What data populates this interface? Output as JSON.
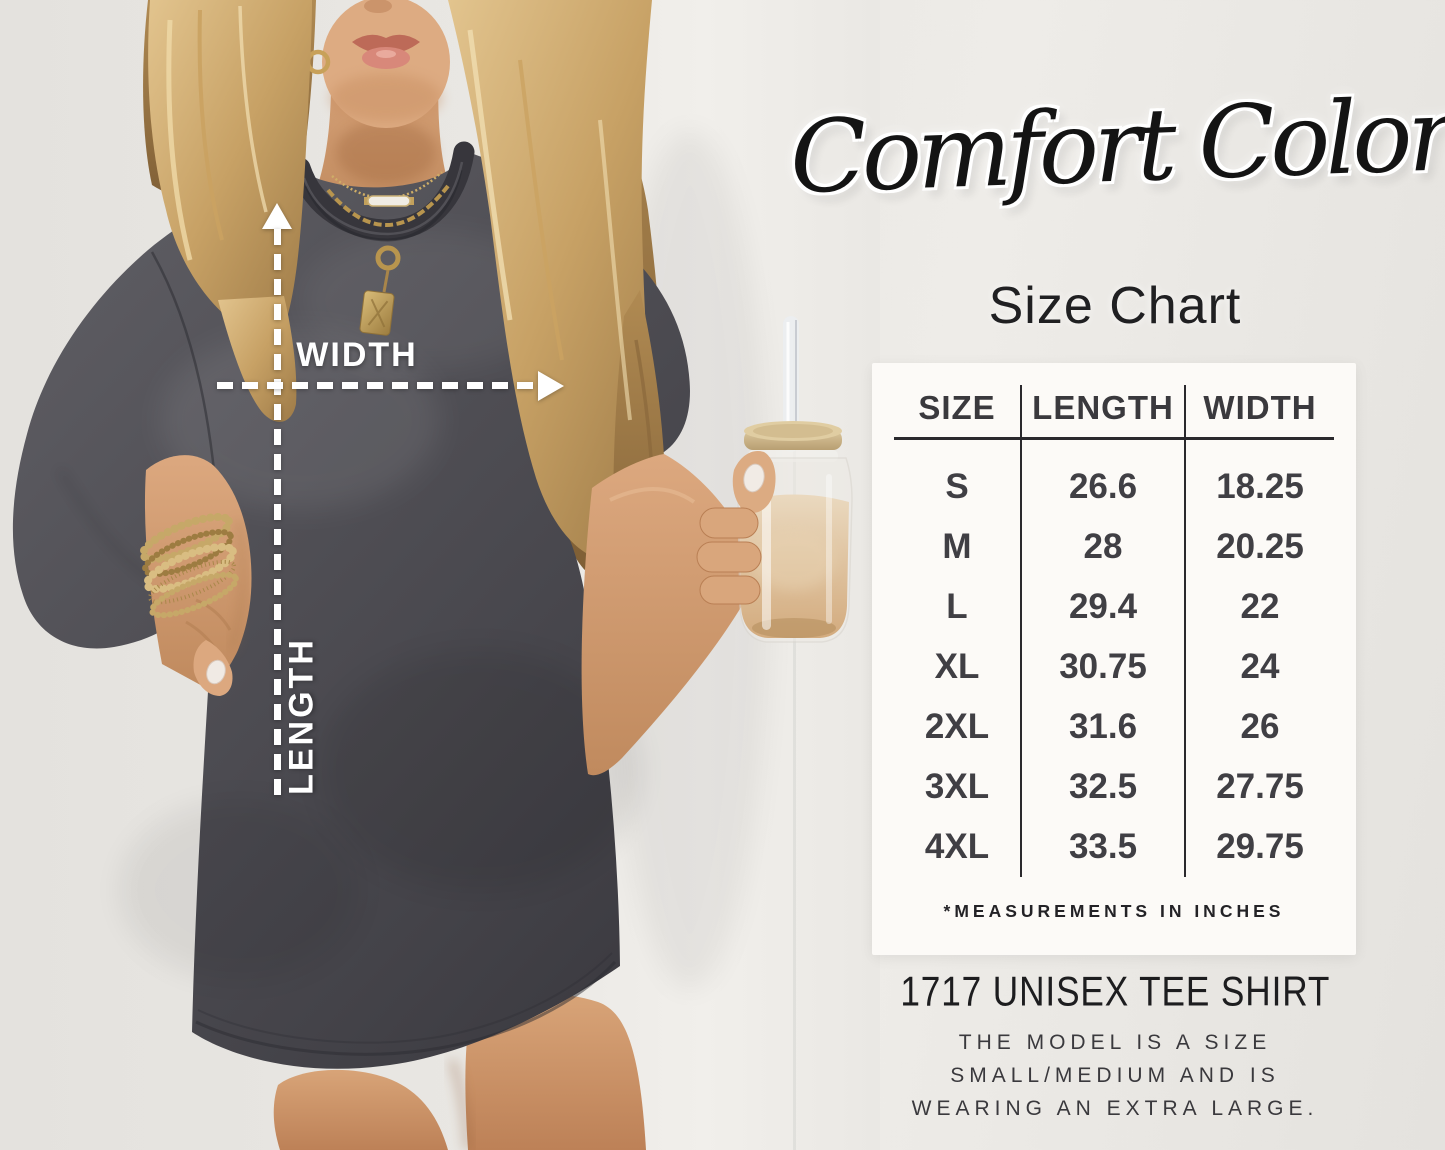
{
  "brand": {
    "script_title": "Comfort Colors",
    "heading": "Size Chart"
  },
  "photo_overlay": {
    "width_label": "WIDTH",
    "length_label": "LENGTH"
  },
  "chart_data": {
    "type": "table",
    "title": "Comfort Colors Size Chart",
    "columns": [
      "SIZE",
      "LENGTH",
      "WIDTH"
    ],
    "rows": [
      [
        "S",
        "26.6",
        "18.25"
      ],
      [
        "M",
        "28",
        "20.25"
      ],
      [
        "L",
        "29.4",
        "22"
      ],
      [
        "XL",
        "30.75",
        "24"
      ],
      [
        "2XL",
        "31.6",
        "26"
      ],
      [
        "3XL",
        "32.5",
        "27.75"
      ],
      [
        "4XL",
        "33.5",
        "29.75"
      ]
    ],
    "units_note": "*MEASUREMENTS IN INCHES",
    "layout": {
      "grid": "off",
      "header_rule": "on",
      "column_dividers": "on"
    }
  },
  "product": {
    "name": "1717 UNISEX TEE SHIRT",
    "model_note_lines": [
      "THE MODEL IS A SIZE",
      "SMALL/MEDIUM AND IS",
      "WEARING AN EXTRA LARGE."
    ]
  },
  "colors": {
    "background": "#e8e6e2",
    "card": "#fcfaf7",
    "table_text": "#3a393d",
    "rule": "#2a292d",
    "shirt": "#4e4d53",
    "annotation": "#ffffff"
  }
}
